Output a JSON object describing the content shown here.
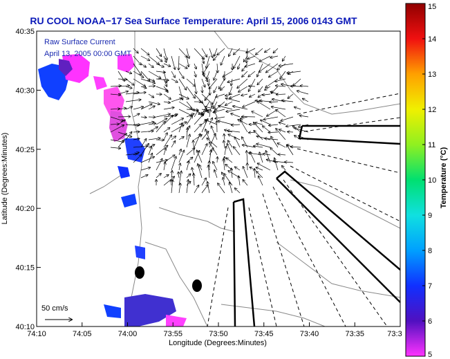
{
  "title": "RU COOL  NOAA−17  Sea Surface Temperature:  April 15, 2006 0143 GMT",
  "legend_text": [
    "Raw Surface Current",
    "April 13, 2005 00:00 GMT"
  ],
  "scale_label": "50 cm/s",
  "chart_data": {
    "type": "heatmap",
    "xlabel": "Longitude (Degrees:Minutes)",
    "ylabel": "Latitude (Degrees:Minutes)",
    "x_ticks": [
      "74:10",
      "74:05",
      "74:00",
      "73:55",
      "73:50",
      "73:45",
      "73:40",
      "73:35",
      "73:3"
    ],
    "y_ticks": [
      "40:35",
      "40:30",
      "40:25",
      "40:20",
      "40:15",
      "40:10"
    ],
    "colorbar": {
      "label": "Temperature (°C)",
      "ticks": [
        "15",
        "14",
        "13",
        "12",
        "11",
        "10",
        "9",
        "8",
        "7",
        "6",
        "5"
      ],
      "min": 5,
      "max": 15
    },
    "sst_patches": [
      {
        "lon": -74.15,
        "lat": 40.52,
        "temp": 6.2
      },
      {
        "lon": -74.1,
        "lat": 40.53,
        "temp": 5.2
      },
      {
        "lon": -74.02,
        "lat": 40.48,
        "temp": 5.1
      },
      {
        "lon": -74.0,
        "lat": 40.42,
        "temp": 6.0
      },
      {
        "lon": -74.05,
        "lat": 40.37,
        "temp": 6.4
      },
      {
        "lon": -74.0,
        "lat": 40.21,
        "temp": 6.2
      },
      {
        "lon": -73.96,
        "lat": 40.17,
        "temp": 6.3
      },
      {
        "lon": -73.92,
        "lat": 40.18,
        "temp": 5.4
      }
    ],
    "grid": false
  }
}
